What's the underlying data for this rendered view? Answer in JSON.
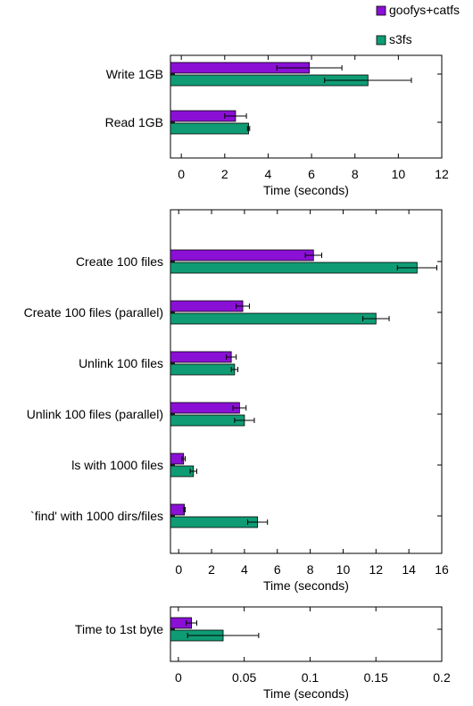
{
  "colors": {
    "goofys+catfs": "#8a10d6",
    "s3fs": "#0f9c74"
  },
  "legend": {
    "placement": "top-right",
    "entries": [
      "goofys+catfs",
      "s3fs"
    ]
  },
  "chart_data": [
    {
      "type": "bar",
      "orientation": "horizontal",
      "categories": [
        "Write 1GB",
        "Read 1GB"
      ],
      "series": [
        {
          "name": "goofys+catfs",
          "values": [
            5.9,
            2.5
          ],
          "error": [
            1.5,
            0.5
          ]
        },
        {
          "name": "s3fs",
          "values": [
            8.6,
            3.1
          ],
          "error": [
            2.0,
            0.05
          ]
        }
      ],
      "xlabel": "Time (seconds)",
      "xlim": [
        -0.5,
        12
      ],
      "xticks": [
        0,
        2,
        4,
        6,
        8,
        10,
        12
      ],
      "tick_labels": [
        "0",
        "2",
        "4",
        "6",
        "8",
        "10",
        "12"
      ]
    },
    {
      "type": "bar",
      "orientation": "horizontal",
      "categories": [
        "Create 100 files",
        "Create 100 files (parallel)",
        "Unlink 100 files",
        "Unlink 100 files (parallel)",
        "ls with 1000 files",
        "`find' with 1000 dirs/files"
      ],
      "series": [
        {
          "name": "goofys+catfs",
          "values": [
            8.2,
            3.9,
            3.2,
            3.7,
            0.3,
            0.35
          ],
          "error": [
            0.5,
            0.4,
            0.3,
            0.4,
            0.1,
            0.05
          ]
        },
        {
          "name": "s3fs",
          "values": [
            14.5,
            12.0,
            3.4,
            4.0,
            0.9,
            4.8
          ],
          "error": [
            1.2,
            0.8,
            0.2,
            0.6,
            0.2,
            0.6
          ]
        }
      ],
      "xlabel": "Time (seconds)",
      "xlim": [
        -0.5,
        16
      ],
      "xticks": [
        0,
        2,
        4,
        6,
        8,
        10,
        12,
        14,
        16
      ],
      "tick_labels": [
        "0",
        "2",
        "4",
        "6",
        "8",
        "10",
        "12",
        "14",
        "16"
      ]
    },
    {
      "type": "bar",
      "orientation": "horizontal",
      "categories": [
        "Time to 1st byte"
      ],
      "series": [
        {
          "name": "goofys+catfs",
          "values": [
            0.01
          ],
          "error": [
            0.004
          ]
        },
        {
          "name": "s3fs",
          "values": [
            0.034
          ],
          "error": [
            0.027
          ]
        }
      ],
      "xlabel": "Time (seconds)",
      "xlim": [
        -0.006,
        0.2
      ],
      "xticks": [
        0,
        0.05,
        0.1,
        0.15,
        0.2
      ],
      "tick_labels": [
        "0",
        "0.05",
        "0.1",
        "0.15",
        "0.2"
      ]
    }
  ]
}
